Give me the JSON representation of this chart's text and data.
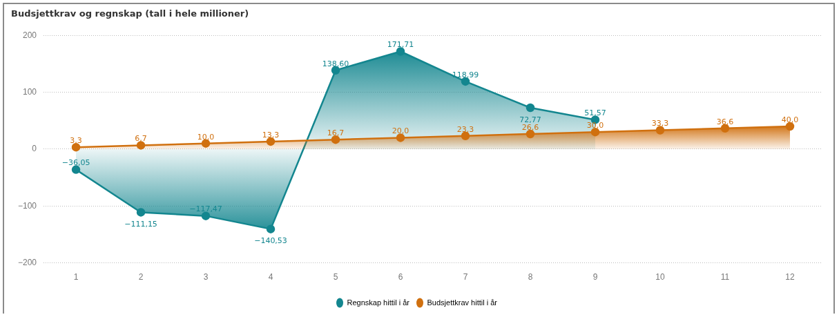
{
  "chart_data": {
    "type": "area",
    "title": "Budsjettkrav og regnskap (tall i hele millioner)",
    "categories": [
      "1",
      "2",
      "3",
      "4",
      "5",
      "6",
      "7",
      "8",
      "9",
      "10",
      "11",
      "12"
    ],
    "series": [
      {
        "name": "Regnskap hittil i år",
        "color": "#13868f",
        "values": [
          -36.05,
          -111.15,
          -117.47,
          -140.53,
          138.6,
          171.71,
          118.99,
          72.77,
          51.57,
          null,
          null,
          null
        ],
        "value_labels": [
          "−36,05",
          "−111,15",
          "−117,47",
          "−140,53",
          "138,60",
          "171,71",
          "118,99",
          "72,77",
          "51,57",
          null,
          null,
          null
        ]
      },
      {
        "name": "Budsjettkrav hittil i år",
        "color": "#d0700f",
        "values": [
          3.3,
          6.7,
          10.0,
          13.3,
          16.7,
          20.0,
          23.3,
          26.6,
          30.0,
          33.3,
          36.6,
          40.0
        ],
        "value_labels": [
          "3,3",
          "6,7",
          "10,0",
          "13,3",
          "16,7",
          "20,0",
          "23,3",
          "26,6",
          "30,0",
          "33,3",
          "36,6",
          "40,0"
        ]
      }
    ],
    "ylim": [
      -200,
      200
    ],
    "yticks": [
      -200,
      -100,
      0,
      100,
      200
    ],
    "grid": "y",
    "legend": "bottom",
    "marker": "circle",
    "line_style": "solid"
  }
}
